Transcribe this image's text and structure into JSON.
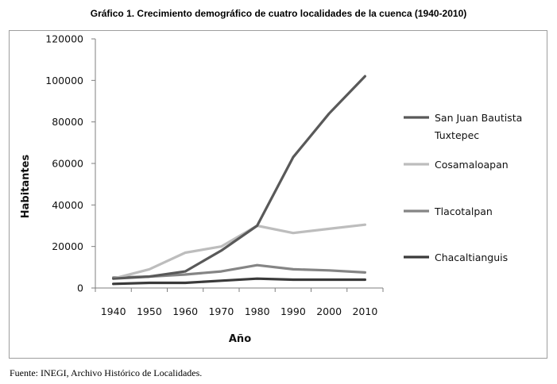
{
  "chart_data": {
    "type": "line",
    "title": "Gráfico 1. Crecimiento demográfico de cuatro localidades de la cuenca (1940-2010)",
    "xlabel": "Año",
    "ylabel": "Habitantes",
    "categories": [
      "1940",
      "1950",
      "1960",
      "1970",
      "1980",
      "1990",
      "2000",
      "2010"
    ],
    "yticks": [
      "0",
      "20000",
      "40000",
      "60000",
      "80000",
      "100000",
      "120000"
    ],
    "ylim": [
      0,
      120000
    ],
    "grid": false,
    "legend_position": "right",
    "series": [
      {
        "name": "San Juan Bautista Tuxtepec",
        "name_lines": [
          "San Juan Bautista",
          "Tuxtepec"
        ],
        "color": "#595959",
        "values": [
          4500,
          5500,
          8000,
          18000,
          30000,
          63000,
          84000,
          102000
        ]
      },
      {
        "name": "Cosamaloapan",
        "name_lines": [
          "Cosamaloapan"
        ],
        "color": "#bdbdbd",
        "values": [
          4500,
          9000,
          17000,
          20000,
          30000,
          26500,
          28500,
          30500
        ]
      },
      {
        "name": "Tlacotalpan",
        "name_lines": [
          "Tlacotalpan"
        ],
        "color": "#858585",
        "values": [
          5000,
          5500,
          6500,
          8000,
          11000,
          9000,
          8500,
          7500
        ]
      },
      {
        "name": "Chacaltianguis",
        "name_lines": [
          "Chacaltianguis"
        ],
        "color": "#3a3a3a",
        "values": [
          2000,
          2500,
          2500,
          3500,
          4500,
          4000,
          4000,
          4000
        ]
      }
    ]
  },
  "source_note": "Fuente: INEGI, Archivo Histórico de Localidades."
}
